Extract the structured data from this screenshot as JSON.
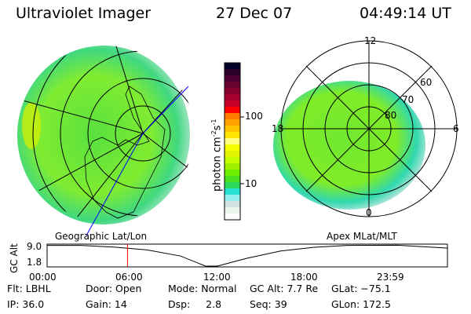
{
  "header": {
    "instrument": "Ultraviolet Imager",
    "date": "27 Dec 07",
    "time": "04:49:14 UT"
  },
  "colorbar": {
    "label": "photon cm",
    "label_exp1": "-2",
    "label_mid": "s",
    "label_exp2": "-1",
    "ticks": [
      "100",
      "10"
    ],
    "scale": "log",
    "colors": [
      "#00002a",
      "#2a0028",
      "#4a0030",
      "#680030",
      "#880030",
      "#a80030",
      "#c80028",
      "#ff0000",
      "#ff7800",
      "#ffa000",
      "#ffc400",
      "#ffe400",
      "#ffff80",
      "#f4ff00",
      "#e0f400",
      "#c8ff00",
      "#a0f000",
      "#70f000",
      "#48e020",
      "#2cd858",
      "#28e0d0",
      "#90eef0",
      "#d0e2e0",
      "#e8f4ec",
      "#ffffff"
    ]
  },
  "left_panel": {
    "label": "Geographic Lat/Lon"
  },
  "right_panel": {
    "label": "Apex MLat/MLT",
    "mlt_labels": {
      "top": "12",
      "left": "18",
      "right": "6",
      "bottom": "0"
    },
    "lat_labels": [
      "80",
      "70",
      "60"
    ]
  },
  "altitude_plot": {
    "ylabel": "GC Alt",
    "yticks": [
      "9.0",
      "1.8"
    ],
    "xticks": [
      "00:00",
      "06:00",
      "12:00",
      "18:00",
      "23:59"
    ],
    "current_time_hours": 4.82,
    "marker_color": "#ff0000",
    "curve": [
      [
        0,
        9.3
      ],
      [
        2,
        9.3
      ],
      [
        4,
        8.7
      ],
      [
        6,
        7.6
      ],
      [
        8,
        5.3
      ],
      [
        9.5,
        1.5
      ],
      [
        10.2,
        1.5
      ],
      [
        12,
        4.5
      ],
      [
        14,
        7.2
      ],
      [
        16,
        8.6
      ],
      [
        18,
        9.3
      ],
      [
        21,
        9.4
      ],
      [
        23.98,
        8.3
      ]
    ]
  },
  "status": {
    "row1": [
      "Flt: LBHL",
      "Door: Open",
      "Mode: Normal",
      "GC Alt: 7.7 Re",
      "GLat: −75.1"
    ],
    "row2": [
      "IP: 36.0",
      "Gain: 14",
      "Dsp:     2.8",
      "Seq: 39",
      "GLon: 172.5"
    ]
  }
}
